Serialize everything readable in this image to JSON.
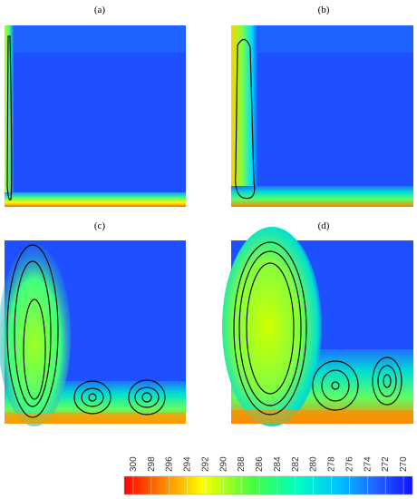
{
  "panels": [
    {
      "label": "(a)"
    },
    {
      "label": "(b)"
    },
    {
      "label": "(c)"
    },
    {
      "label": "(d)"
    }
  ],
  "colorbar": {
    "ticks": [
      300,
      298,
      296,
      294,
      292,
      290,
      288,
      286,
      284,
      282,
      280,
      278,
      276,
      274,
      272,
      270
    ]
  }
}
